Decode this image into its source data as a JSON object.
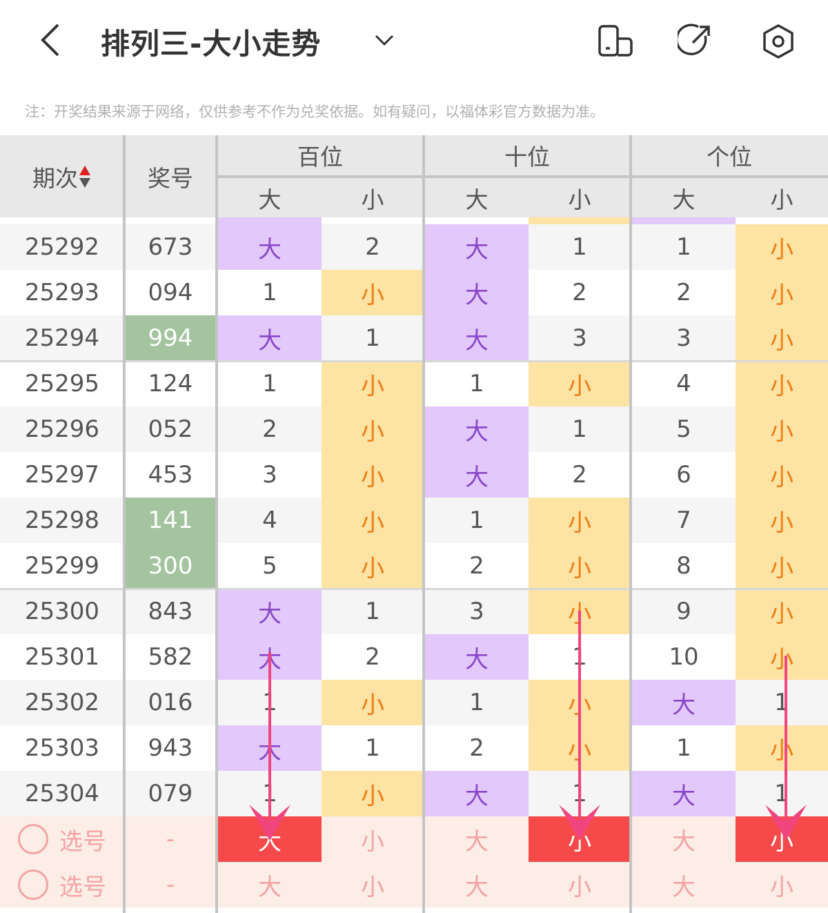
{
  "header": {
    "title": "排列三-大小走势",
    "icons": [
      "back-arrow-icon",
      "chevron-down-icon",
      "landscape-toggle-icon",
      "share-icon",
      "settings-icon"
    ]
  },
  "note": "注：开奖结果来源于网络，仅供参考不作为兑奖依据。如有疑问，以福体彩官方数据为准。",
  "table": {
    "col_period": "期次",
    "col_number": "奖号",
    "groups": [
      "百位",
      "十位",
      "个位"
    ],
    "sub": [
      "大",
      "小",
      "大",
      "小",
      "大",
      "小"
    ],
    "colors": {
      "big_bg": "#e3c8fb",
      "big_text": "#8a47c9",
      "small_bg": "#fde3a4",
      "small_text": "#ee7d12",
      "repeat_bg": "#a3c49f",
      "selected": "#f64a4a",
      "arrow": "#f0457f"
    },
    "rows": [
      {
        "period": "25292",
        "number": "673",
        "repeat": false,
        "cells": [
          "大",
          "2",
          "大",
          "1",
          "1",
          "小"
        ]
      },
      {
        "period": "25293",
        "number": "094",
        "repeat": false,
        "cells": [
          "1",
          "小",
          "大",
          "2",
          "2",
          "小"
        ]
      },
      {
        "period": "25294",
        "number": "994",
        "repeat": true,
        "cells": [
          "大",
          "1",
          "大",
          "3",
          "3",
          "小"
        ]
      },
      {
        "period": "25295",
        "number": "124",
        "repeat": false,
        "cells": [
          "1",
          "小",
          "1",
          "小",
          "4",
          "小"
        ]
      },
      {
        "period": "25296",
        "number": "052",
        "repeat": false,
        "cells": [
          "2",
          "小",
          "大",
          "1",
          "5",
          "小"
        ]
      },
      {
        "period": "25297",
        "number": "453",
        "repeat": false,
        "cells": [
          "3",
          "小",
          "大",
          "2",
          "6",
          "小"
        ]
      },
      {
        "period": "25298",
        "number": "141",
        "repeat": true,
        "cells": [
          "4",
          "小",
          "1",
          "小",
          "7",
          "小"
        ]
      },
      {
        "period": "25299",
        "number": "300",
        "repeat": true,
        "cells": [
          "5",
          "小",
          "2",
          "小",
          "8",
          "小"
        ]
      },
      {
        "period": "25300",
        "number": "843",
        "repeat": false,
        "cells": [
          "大",
          "1",
          "3",
          "小",
          "9",
          "小"
        ]
      },
      {
        "period": "25301",
        "number": "582",
        "repeat": false,
        "cells": [
          "大",
          "2",
          "大",
          "1",
          "10",
          "小"
        ]
      },
      {
        "period": "25302",
        "number": "016",
        "repeat": false,
        "cells": [
          "1",
          "小",
          "1",
          "小",
          "大",
          "1"
        ]
      },
      {
        "period": "25303",
        "number": "943",
        "repeat": false,
        "cells": [
          "大",
          "1",
          "2",
          "小",
          "1",
          "小"
        ]
      },
      {
        "period": "25304",
        "number": "079",
        "repeat": false,
        "cells": [
          "1",
          "小",
          "大",
          "1",
          "大",
          "1"
        ]
      }
    ],
    "select_rows": [
      {
        "label": "选号",
        "number": "-",
        "cells": [
          "大",
          "小",
          "大",
          "小",
          "大",
          "小"
        ],
        "selected": [
          0,
          3,
          5
        ]
      },
      {
        "label": "选号",
        "number": "-",
        "cells": [
          "大",
          "小",
          "大",
          "小",
          "大",
          "小"
        ],
        "selected": []
      }
    ]
  }
}
